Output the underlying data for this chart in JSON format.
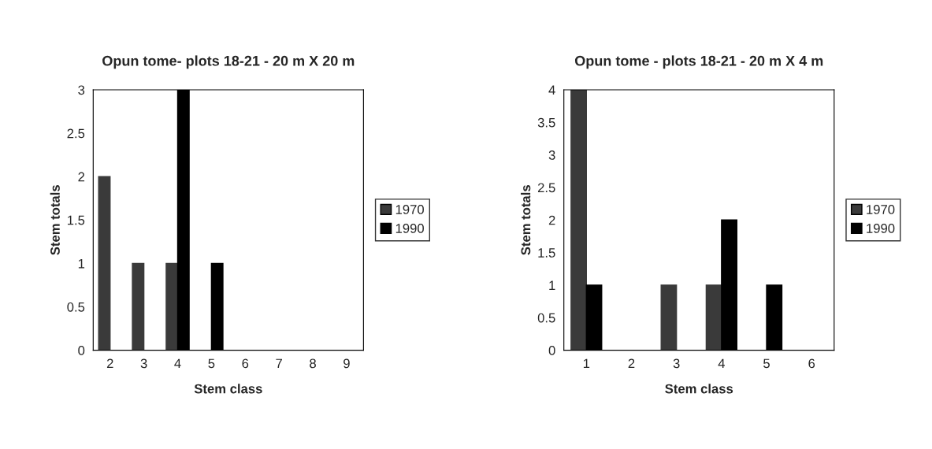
{
  "chart_data": [
    {
      "type": "bar",
      "title": "Opun tome- plots 18-21 - 20 m X 20 m",
      "xlabel": "Stem class",
      "ylabel": "Stem totals",
      "categories": [
        "2",
        "3",
        "4",
        "5",
        "6",
        "7",
        "8",
        "9"
      ],
      "series": [
        {
          "name": "1970",
          "color": "#3a3a3a",
          "values": [
            2,
            1,
            1,
            0,
            0,
            0,
            0,
            0
          ]
        },
        {
          "name": "1990",
          "color": "#000000",
          "values": [
            0,
            0,
            3,
            1,
            0,
            0,
            0,
            0
          ]
        }
      ],
      "ylim": [
        0,
        3
      ],
      "yticks": [
        0,
        0.5,
        1,
        1.5,
        2,
        2.5,
        3
      ],
      "legend": "right",
      "grid": false
    },
    {
      "type": "bar",
      "title": "Opun tome - plots 18-21 - 20 m X 4 m",
      "xlabel": "Stem class",
      "ylabel": "Stem totals",
      "categories": [
        "1",
        "2",
        "3",
        "4",
        "5",
        "6"
      ],
      "series": [
        {
          "name": "1970",
          "color": "#3a3a3a",
          "values": [
            4,
            0,
            1,
            1,
            0,
            0
          ]
        },
        {
          "name": "1990",
          "color": "#000000",
          "values": [
            1,
            0,
            0,
            2,
            1,
            0
          ]
        }
      ],
      "ylim": [
        0,
        4
      ],
      "yticks": [
        0,
        0.5,
        1,
        1.5,
        2,
        2.5,
        3,
        3.5,
        4
      ],
      "legend": "right",
      "grid": false
    }
  ]
}
